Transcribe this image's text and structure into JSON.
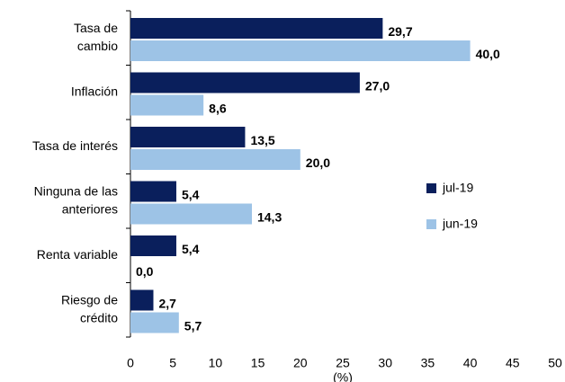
{
  "chart_data": {
    "type": "bar",
    "orientation": "horizontal",
    "categories": [
      [
        "Tasa de",
        "cambio"
      ],
      [
        "Inflación"
      ],
      [
        "Tasa de interés"
      ],
      [
        "Ninguna de las",
        "anteriores"
      ],
      [
        "Renta variable"
      ],
      [
        "Riesgo de",
        "crédito"
      ]
    ],
    "series": [
      {
        "name": "jul-19",
        "color": "#0a1f5c",
        "values": [
          29.7,
          27.0,
          13.5,
          5.4,
          5.4,
          2.7
        ],
        "value_labels": [
          "29,7",
          "27,0",
          "13,5",
          "5,4",
          "5,4",
          "2,7"
        ]
      },
      {
        "name": "jun-19",
        "color": "#9dc3e6",
        "values": [
          40.0,
          8.6,
          20.0,
          14.3,
          0.0,
          5.7
        ],
        "value_labels": [
          "40,0",
          "8,6",
          "20,0",
          "14,3",
          "0,0",
          "5,7"
        ]
      }
    ],
    "xlabel": "(%)",
    "xlim": [
      0,
      50
    ],
    "xticks": [
      0,
      5,
      10,
      15,
      20,
      25,
      30,
      35,
      40,
      45,
      50
    ],
    "grid": false,
    "legend": "right"
  }
}
